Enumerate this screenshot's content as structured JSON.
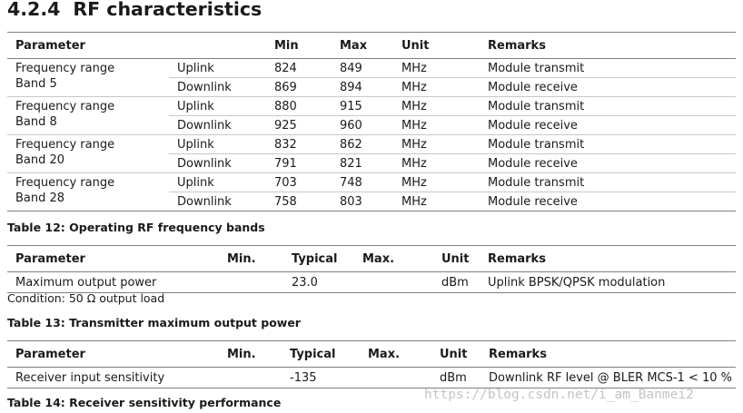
{
  "section": {
    "number": "4.2.4",
    "title": "RF characteristics"
  },
  "table12": {
    "headers": [
      "Parameter",
      "",
      "Min",
      "Max",
      "Unit",
      "Remarks"
    ],
    "bands": [
      {
        "param_line1": "Frequency range",
        "param_line2": "Band 5",
        "rows": [
          {
            "dir": "Uplink",
            "min": "824",
            "max": "849",
            "unit": "MHz",
            "remarks": "Module transmit"
          },
          {
            "dir": "Downlink",
            "min": "869",
            "max": "894",
            "unit": "MHz",
            "remarks": "Module receive"
          }
        ]
      },
      {
        "param_line1": "Frequency range",
        "param_line2": "Band 8",
        "rows": [
          {
            "dir": "Uplink",
            "min": "880",
            "max": "915",
            "unit": "MHz",
            "remarks": "Module transmit"
          },
          {
            "dir": "Downlink",
            "min": "925",
            "max": "960",
            "unit": "MHz",
            "remarks": "Module receive"
          }
        ]
      },
      {
        "param_line1": "Frequency range",
        "param_line2": "Band 20",
        "rows": [
          {
            "dir": "Uplink",
            "min": "832",
            "max": "862",
            "unit": "MHz",
            "remarks": "Module transmit"
          },
          {
            "dir": "Downlink",
            "min": "791",
            "max": "821",
            "unit": "MHz",
            "remarks": "Module receive"
          }
        ]
      },
      {
        "param_line1": "Frequency range",
        "param_line2": "Band 28",
        "rows": [
          {
            "dir": "Uplink",
            "min": "703",
            "max": "748",
            "unit": "MHz",
            "remarks": "Module transmit"
          },
          {
            "dir": "Downlink",
            "min": "758",
            "max": "803",
            "unit": "MHz",
            "remarks": "Module receive"
          }
        ]
      }
    ],
    "caption": "Table 12: Operating RF frequency bands"
  },
  "table13": {
    "headers": {
      "parameter": "Parameter",
      "min": "Min.",
      "typical": "Typical",
      "max": "Max.",
      "unit": "Unit",
      "remarks": "Remarks"
    },
    "row": {
      "parameter": "Maximum output power",
      "min": "",
      "typical": "23.0",
      "max": "",
      "unit": "dBm",
      "remarks": "Uplink BPSK/QPSK modulation"
    },
    "condition": "Condition: 50 Ω output load",
    "caption": "Table 13: Transmitter maximum output power"
  },
  "table14": {
    "headers": {
      "parameter": "Parameter",
      "min": "Min.",
      "typical": "Typical",
      "max": "Max.",
      "unit": "Unit",
      "remarks": "Remarks"
    },
    "row": {
      "parameter": "Receiver input sensitivity",
      "min": "",
      "typical": "-135",
      "max": "",
      "unit": "dBm",
      "remarks": "Downlink RF level @ BLER MCS-1 < 10 %"
    },
    "caption": "Table 14: Receiver sensitivity performance"
  },
  "watermark": "https://blog.csdn.net/i_am_Banmei2"
}
